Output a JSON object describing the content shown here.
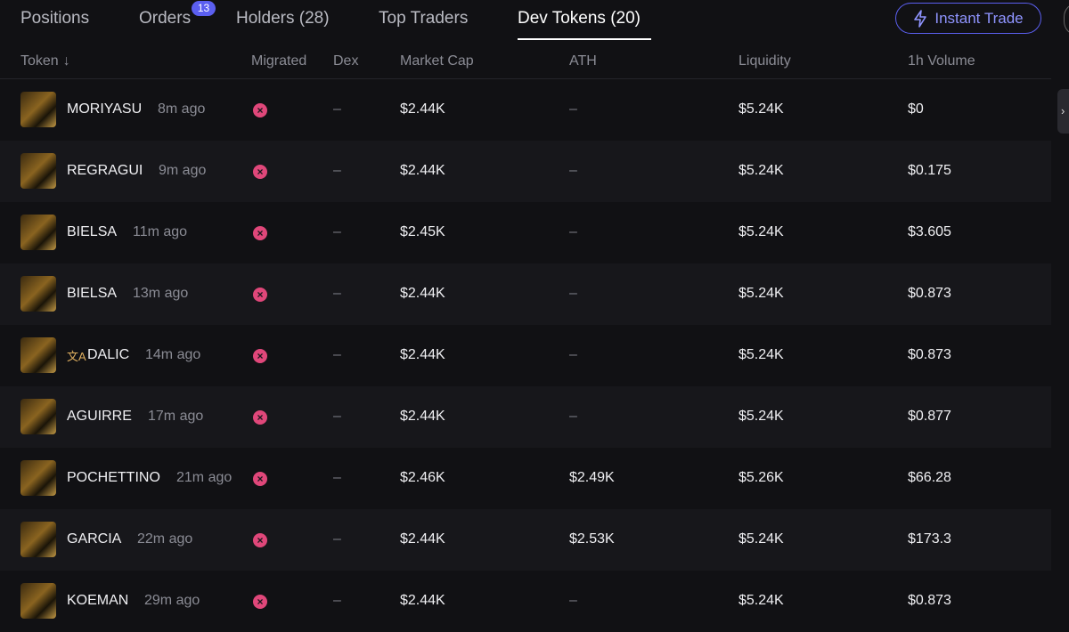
{
  "tabs": {
    "items": [
      "Positions",
      "Orders",
      "Holders (28)",
      "Top Traders",
      "Dev Tokens (20)"
    ],
    "orders_badge": "13",
    "active": 4
  },
  "instant_trade": "Instant Trade",
  "table": {
    "headers": [
      "Token",
      "Migrated",
      "Dex",
      "Market Cap",
      "ATH",
      "Liquidity",
      "1h Volume"
    ],
    "rows": [
      {
        "name": "MORIYASU",
        "age": "8m ago",
        "dex": "–",
        "market_cap": "$2.44K",
        "ath": "–",
        "liquidity": "$5.24K",
        "volume": "$0"
      },
      {
        "name": "REGRAGUI",
        "age": "9m ago",
        "dex": "–",
        "market_cap": "$2.44K",
        "ath": "–",
        "liquidity": "$5.24K",
        "volume": "$0.175"
      },
      {
        "name": "BIELSA",
        "age": "11m ago",
        "dex": "–",
        "market_cap": "$2.45K",
        "ath": "–",
        "liquidity": "$5.24K",
        "volume": "$3.605"
      },
      {
        "name": "BIELSA",
        "age": "13m ago",
        "dex": "–",
        "market_cap": "$2.44K",
        "ath": "–",
        "liquidity": "$5.24K",
        "volume": "$0.873"
      },
      {
        "name": "DALIC",
        "age": "14m ago",
        "dex": "–",
        "market_cap": "$2.44K",
        "ath": "–",
        "liquidity": "$5.24K",
        "volume": "$0.873",
        "translated": true
      },
      {
        "name": "AGUIRRE",
        "age": "17m ago",
        "dex": "–",
        "market_cap": "$2.44K",
        "ath": "–",
        "liquidity": "$5.24K",
        "volume": "$0.877"
      },
      {
        "name": "POCHETTINO",
        "age": "21m ago",
        "dex": "–",
        "market_cap": "$2.46K",
        "ath": "$2.49K",
        "liquidity": "$5.26K",
        "volume": "$66.28"
      },
      {
        "name": "GARCIA",
        "age": "22m ago",
        "dex": "–",
        "market_cap": "$2.44K",
        "ath": "$2.53K",
        "liquidity": "$5.24K",
        "volume": "$173.3"
      },
      {
        "name": "KOEMAN",
        "age": "29m ago",
        "dex": "–",
        "market_cap": "$2.44K",
        "ath": "–",
        "liquidity": "$5.24K",
        "volume": "$0.873"
      }
    ]
  }
}
